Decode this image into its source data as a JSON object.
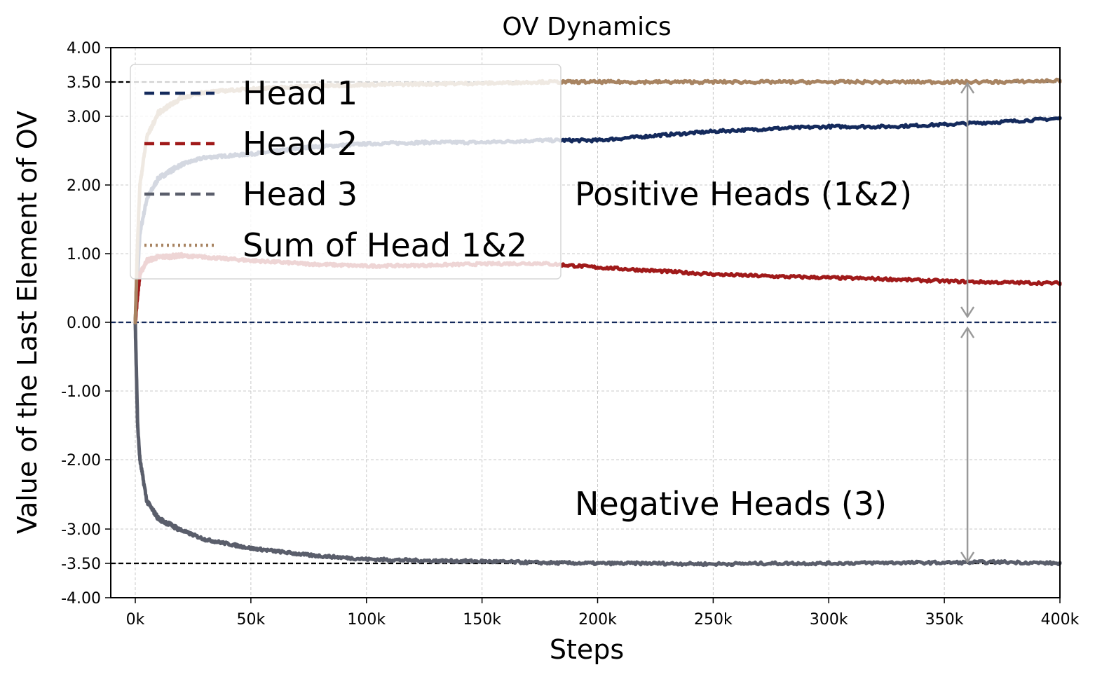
{
  "chart_data": {
    "type": "line",
    "title": "OV Dynamics",
    "xlabel": "Steps",
    "ylabel": "Value of the Last Element of OV",
    "xlim": [
      -10000,
      400000
    ],
    "ylim": [
      -4.0,
      4.0
    ],
    "y_scale": "symlog-like (1.0 → 3.0 compressed, top/bottom halves stretched)",
    "grid": true,
    "legend_position": "upper-left",
    "x_ticks": [
      0,
      50000,
      100000,
      150000,
      200000,
      250000,
      300000,
      350000,
      400000
    ],
    "x_tick_labels": [
      "0k",
      "50k",
      "100k",
      "150k",
      "200k",
      "250k",
      "300k",
      "350k",
      "400k"
    ],
    "y_ticks": [
      4.0,
      3.5,
      3.0,
      2.0,
      1.0,
      0.0,
      -1.0,
      -2.0,
      -3.0,
      -3.5,
      -4.0
    ],
    "y_tick_labels": [
      "4.00",
      "3.50",
      "3.00",
      "2.00",
      "1.00",
      "0.00",
      "-1.00",
      "-2.00",
      "-3.00",
      "-3.50",
      "-4.00"
    ],
    "series": [
      {
        "name": "Head 1",
        "color": "#142a5c",
        "style": "dashed",
        "x": [
          0,
          2000,
          5000,
          10000,
          20000,
          30000,
          50000,
          75000,
          100000,
          125000,
          150000,
          175000,
          200000,
          225000,
          250000,
          275000,
          300000,
          325000,
          350000,
          375000,
          400000
        ],
        "values": [
          0.0,
          1.3,
          1.8,
          2.1,
          2.3,
          2.4,
          2.45,
          2.55,
          2.6,
          2.62,
          2.62,
          2.65,
          2.65,
          2.72,
          2.78,
          2.82,
          2.85,
          2.85,
          2.88,
          2.92,
          2.97
        ]
      },
      {
        "name": "Head 2",
        "color": "#a01a1a",
        "style": "dashed",
        "x": [
          0,
          1000,
          2000,
          5000,
          10000,
          20000,
          30000,
          50000,
          75000,
          100000,
          125000,
          150000,
          175000,
          200000,
          225000,
          250000,
          275000,
          300000,
          325000,
          350000,
          375000,
          400000
        ],
        "values": [
          0.0,
          0.4,
          0.7,
          0.9,
          0.95,
          0.97,
          0.95,
          0.9,
          0.85,
          0.82,
          0.83,
          0.85,
          0.86,
          0.8,
          0.75,
          0.7,
          0.67,
          0.65,
          0.63,
          0.6,
          0.58,
          0.57
        ]
      },
      {
        "name": "Head 3",
        "color": "#5a5e6b",
        "style": "dashed",
        "x": [
          0,
          1000,
          2000,
          5000,
          10000,
          20000,
          30000,
          50000,
          75000,
          100000,
          125000,
          150000,
          175000,
          200000,
          225000,
          250000,
          275000,
          300000,
          325000,
          350000,
          375000,
          400000
        ],
        "values": [
          0.0,
          -1.5,
          -2.0,
          -2.6,
          -2.85,
          -3.02,
          -3.15,
          -3.28,
          -3.38,
          -3.44,
          -3.46,
          -3.47,
          -3.49,
          -3.5,
          -3.5,
          -3.51,
          -3.5,
          -3.5,
          -3.49,
          -3.49,
          -3.48,
          -3.5
        ]
      },
      {
        "name": "Sum of Head 1&2",
        "color": "#a88462",
        "style": "dotted",
        "x": [
          0,
          1000,
          2000,
          5000,
          10000,
          20000,
          30000,
          50000,
          75000,
          100000,
          125000,
          150000,
          175000,
          200000,
          225000,
          250000,
          275000,
          300000,
          325000,
          350000,
          375000,
          400000
        ],
        "values": [
          0.0,
          1.2,
          2.0,
          2.7,
          3.05,
          3.27,
          3.35,
          3.4,
          3.44,
          3.46,
          3.47,
          3.48,
          3.5,
          3.5,
          3.5,
          3.5,
          3.5,
          3.5,
          3.5,
          3.5,
          3.5,
          3.52
        ]
      }
    ],
    "reference_lines": [
      {
        "y": 3.5,
        "color": "#000000",
        "style": "dashed"
      },
      {
        "y": 0.0,
        "color": "#142a5c",
        "style": "dashed"
      },
      {
        "y": -3.5,
        "color": "#000000",
        "style": "dashed"
      }
    ],
    "annotations": [
      {
        "text": "Positive Heads (1&2)"
      },
      {
        "text": "Negative Heads (3)"
      }
    ],
    "arrow_color": "#999999"
  }
}
